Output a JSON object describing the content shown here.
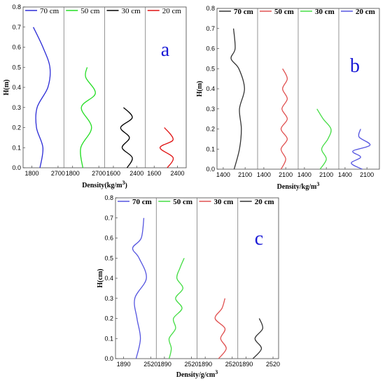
{
  "chart_data": [
    {
      "panel_letter": "a",
      "type": "line",
      "ylabel": "H(m)",
      "xlabel": "Density(kg/m3)",
      "ylim": [
        0,
        0.8
      ],
      "y_ticks": [
        "0.0",
        "0.1",
        "0.2",
        "0.3",
        "0.4",
        "0.5",
        "0.6",
        "0.7",
        "0.8"
      ],
      "legend": [
        "70 cm",
        "50 cm",
        "30 cm",
        "20 cm"
      ],
      "colors": [
        "#2b2bd6",
        "#22dd22",
        "#000000",
        "#e01010"
      ],
      "subpanels": [
        {
          "x_ticks": [
            "1800",
            "2700"
          ],
          "xlim": [
            1500,
            2900
          ],
          "y": [
            0,
            0.1,
            0.2,
            0.3,
            0.4,
            0.5,
            0.6,
            0.7
          ],
          "x": [
            2080,
            2180,
            1960,
            1980,
            2350,
            2420,
            2180,
            1850
          ]
        },
        {
          "x_ticks": [
            "1800",
            "2700"
          ],
          "xlim": [
            1500,
            2900
          ],
          "y": [
            0,
            0.1,
            0.2,
            0.3,
            0.37,
            0.45,
            0.5
          ],
          "x": [
            2150,
            2080,
            2450,
            2100,
            2580,
            2250,
            2300
          ]
        },
        {
          "x_ticks": [
            "1600",
            "2400"
          ],
          "xlim": [
            1300,
            2700
          ],
          "y": [
            0,
            0.05,
            0.1,
            0.15,
            0.2,
            0.25,
            0.3
          ],
          "x": [
            2070,
            2250,
            1900,
            2150,
            1850,
            2250,
            1950
          ]
        },
        {
          "x_ticks": [
            "1600",
            "2400"
          ],
          "xlim": [
            1300,
            2700
          ],
          "y": [
            0,
            0.05,
            0.1,
            0.14,
            0.2
          ],
          "x": [
            2050,
            2250,
            1800,
            2250,
            1950
          ]
        }
      ]
    },
    {
      "panel_letter": "b",
      "type": "line",
      "ylabel": "H(m)",
      "xlabel": "Density/kg/m3",
      "ylim": [
        0,
        0.8
      ],
      "y_ticks": [
        "0.0",
        "0.1",
        "0.2",
        "0.3",
        "0.4",
        "0.5",
        "0.6",
        "0.7",
        "0.8"
      ],
      "legend": [
        "70 cm",
        "50 cm",
        "30 cm",
        "20 cm"
      ],
      "colors": [
        "#333333",
        "#e05050",
        "#44dd44",
        "#5555e0"
      ],
      "subpanels": [
        {
          "x_ticks": [
            "1400",
            "2100"
          ],
          "xlim": [
            1200,
            2500
          ],
          "y": [
            0,
            0.1,
            0.2,
            0.3,
            0.4,
            0.5,
            0.55,
            0.6,
            0.7
          ],
          "x": [
            1750,
            1920,
            1980,
            1920,
            2080,
            1900,
            1650,
            1780,
            1730
          ]
        },
        {
          "x_ticks": [
            "1400",
            "2100"
          ],
          "xlim": [
            1200,
            2500
          ],
          "y": [
            0,
            0.05,
            0.1,
            0.15,
            0.2,
            0.25,
            0.3,
            0.35,
            0.4,
            0.45,
            0.5
          ],
          "x": [
            1950,
            2100,
            1950,
            2150,
            1950,
            2150,
            1980,
            2150,
            2000,
            2150,
            2000
          ]
        },
        {
          "x_ticks": [
            "1400",
            "2100"
          ],
          "xlim": [
            1200,
            2500
          ],
          "y": [
            0,
            0.05,
            0.1,
            0.15,
            0.2,
            0.25,
            0.3
          ],
          "x": [
            1900,
            2100,
            1950,
            2150,
            2250,
            2000,
            1800
          ]
        },
        {
          "x_ticks": [
            "1400",
            "2100"
          ],
          "xlim": [
            1200,
            2500
          ],
          "y": [
            0,
            0.03,
            0.06,
            0.09,
            0.12,
            0.16,
            0.2
          ],
          "x": [
            1950,
            1600,
            1900,
            1650,
            2200,
            1850,
            1900
          ]
        }
      ]
    },
    {
      "panel_letter": "c",
      "type": "line",
      "ylabel": "H(cm)",
      "xlabel": "Density/g/cm3",
      "ylim": [
        0,
        0.8
      ],
      "y_ticks": [
        "0.0",
        "0.1",
        "0.2",
        "0.3",
        "0.4",
        "0.5",
        "0.6",
        "0.7",
        "0.8"
      ],
      "legend": [
        "70 cm",
        "50 cm",
        "30 cm",
        "20 cm"
      ],
      "colors": [
        "#5555e0",
        "#44dd44",
        "#e05050",
        "#333333"
      ],
      "subpanels": [
        {
          "x_ticks": [
            "1890",
            "2520"
          ],
          "xlim": [
            1700,
            2650
          ],
          "y": [
            0,
            0.1,
            0.2,
            0.3,
            0.4,
            0.5,
            0.55,
            0.6,
            0.7
          ],
          "x": [
            2180,
            2280,
            2200,
            2150,
            2420,
            2250,
            2100,
            2300,
            2360
          ]
        },
        {
          "x_ticks": [
            "1890",
            "2520"
          ],
          "xlim": [
            1700,
            2650
          ],
          "y": [
            0,
            0.05,
            0.1,
            0.15,
            0.2,
            0.25,
            0.3,
            0.35,
            0.4,
            0.45,
            0.5
          ],
          "x": [
            2000,
            2050,
            2000,
            2150,
            2100,
            2300,
            2150,
            2320,
            2180,
            2250,
            2350
          ]
        },
        {
          "x_ticks": [
            "1890",
            "2520"
          ],
          "xlim": [
            1700,
            2650
          ],
          "y": [
            0,
            0.05,
            0.1,
            0.15,
            0.2,
            0.25,
            0.3
          ],
          "x": [
            2200,
            2380,
            2250,
            2350,
            2120,
            2280,
            2350
          ]
        },
        {
          "x_ticks": [
            "1890",
            "2520"
          ],
          "xlim": [
            1700,
            2650
          ],
          "y": [
            0,
            0.05,
            0.1,
            0.15,
            0.2
          ],
          "x": [
            2050,
            2250,
            2100,
            2280,
            2200
          ]
        }
      ]
    }
  ]
}
